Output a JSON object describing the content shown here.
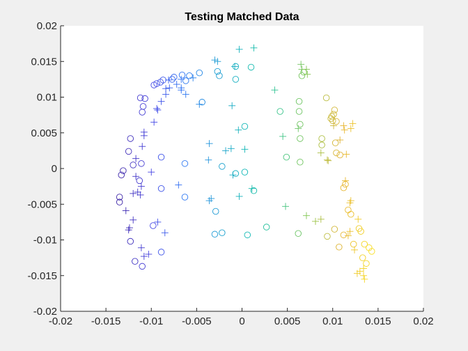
{
  "chart_data": {
    "type": "scatter",
    "title": "Testing Matched Data",
    "xlim": [
      -0.02,
      0.02
    ],
    "ylim": [
      -0.02,
      0.02
    ],
    "x_ticks": [
      "-0.02",
      "-0.015",
      "-0.01",
      "-0.005",
      "0",
      "0.005",
      "0.01",
      "0.015",
      "0.02"
    ],
    "y_ticks": [
      "-0.02",
      "-0.015",
      "-0.01",
      "-0.005",
      "0",
      "0.005",
      "0.01",
      "0.015",
      "0.02"
    ],
    "grid": false,
    "colormap": "parula",
    "colormap_stops": [
      "#3e26a8",
      "#4745e4",
      "#2d75f4",
      "#1e9ad6",
      "#0eb8b4",
      "#33c48e",
      "#8dc64c",
      "#e6b332",
      "#f9e21f"
    ],
    "series": [
      {
        "marker": "circle",
        "points": [
          [
            -0.0135,
            -0.004
          ],
          [
            -0.0135,
            -0.0047
          ],
          [
            -0.0133,
            -0.0009
          ],
          [
            -0.0131,
            -0.0003
          ],
          [
            -0.0125,
            0.0024
          ],
          [
            -0.0123,
            0.0042
          ],
          [
            -0.012,
            0.0005
          ],
          [
            -0.0123,
            -0.0102
          ],
          [
            -0.0118,
            -0.013
          ],
          [
            -0.011,
            -0.0137
          ],
          [
            -0.0112,
            0.0099
          ],
          [
            -0.0109,
            0.0087
          ],
          [
            -0.011,
            0.0079
          ],
          [
            -0.0107,
            0.0098
          ],
          [
            -0.0111,
            0.0007
          ],
          [
            -0.0113,
            -0.0017
          ],
          [
            -0.0097,
            0.0117
          ],
          [
            -0.0094,
            0.0119
          ],
          [
            -0.009,
            0.0121
          ],
          [
            -0.0087,
            0.0124
          ],
          [
            -0.0077,
            0.0125
          ],
          [
            -0.0075,
            0.0128
          ],
          [
            -0.0066,
            0.0131
          ],
          [
            -0.0058,
            0.013
          ],
          [
            -0.0062,
            0.0123
          ],
          [
            -0.0047,
            0.0134
          ],
          [
            -0.0044,
            0.0093
          ],
          [
            -0.0089,
            0.0016
          ],
          [
            -0.0089,
            -0.0028
          ],
          [
            -0.0098,
            -0.008
          ],
          [
            -0.0089,
            -0.0117
          ],
          [
            -0.0063,
            0.0007
          ],
          [
            -0.0063,
            -0.004
          ],
          [
            -0.0027,
            0.0136
          ],
          [
            -0.0025,
            0.013
          ],
          [
            -0.0007,
            0.0143
          ],
          [
            -0.0007,
            0.0125
          ],
          [
            -0.0022,
            0.0003
          ],
          [
            -0.0007,
            -0.0007
          ],
          [
            0.0003,
            -0.0005
          ],
          [
            0.0003,
            0.0059
          ],
          [
            0.0013,
            -0.0031
          ],
          [
            -0.0029,
            -0.006
          ],
          [
            -0.003,
            -0.0092
          ],
          [
            -0.0022,
            -0.009
          ],
          [
            0.0006,
            -0.0093
          ],
          [
            0.0027,
            -0.0082
          ],
          [
            0.001,
            0.0142
          ],
          [
            0.0042,
            0.008
          ],
          [
            0.0049,
            0.0016
          ],
          [
            0.0063,
            0.0094
          ],
          [
            0.0063,
            0.008
          ],
          [
            0.0064,
            0.0062
          ],
          [
            0.0064,
            0.0042
          ],
          [
            0.0064,
            0.0009
          ],
          [
            0.0062,
            -0.0091
          ],
          [
            0.0066,
            0.013
          ],
          [
            0.0068,
            0.0135
          ],
          [
            0.0088,
            0.0042
          ],
          [
            0.0088,
            0.0033
          ],
          [
            0.0093,
            0.0099
          ],
          [
            0.0094,
            -0.0095
          ],
          [
            0.0098,
            0.007
          ],
          [
            0.0099,
            0.0073
          ],
          [
            0.01,
            0.0067
          ],
          [
            0.0101,
            0.0076
          ],
          [
            0.0102,
            0.0082
          ],
          [
            0.0104,
            0.0066
          ],
          [
            0.0103,
            0.0036
          ],
          [
            0.0104,
            0.0022
          ],
          [
            0.0108,
            0.0019
          ],
          [
            0.0102,
            -0.0085
          ],
          [
            0.0107,
            -0.011
          ],
          [
            0.0112,
            -0.0093
          ],
          [
            0.0114,
            -0.0022
          ],
          [
            0.0112,
            -0.0027
          ],
          [
            0.0117,
            -0.0058
          ],
          [
            0.012,
            -0.0064
          ],
          [
            0.0123,
            -0.0106
          ],
          [
            0.0129,
            -0.0084
          ],
          [
            0.0131,
            -0.0088
          ],
          [
            0.0133,
            -0.0125
          ],
          [
            0.0135,
            -0.0106
          ],
          [
            0.0137,
            -0.0133
          ],
          [
            0.014,
            -0.0111
          ],
          [
            0.0143,
            -0.0116
          ]
        ]
      },
      {
        "marker": "plus",
        "points": [
          [
            -0.0128,
            -0.0059
          ],
          [
            -0.0125,
            -0.0086
          ],
          [
            -0.0124,
            -0.0083
          ],
          [
            -0.012,
            -0.0035
          ],
          [
            -0.012,
            -0.0072
          ],
          [
            -0.0115,
            -0.0033
          ],
          [
            -0.0117,
            -0.0011
          ],
          [
            -0.0117,
            0.0014
          ],
          [
            -0.0112,
            -0.0037
          ],
          [
            -0.0111,
            -0.0111
          ],
          [
            -0.0108,
            -0.0123
          ],
          [
            -0.0111,
            -0.0025
          ],
          [
            -0.0108,
            0.0051
          ],
          [
            -0.0108,
            0.0046
          ],
          [
            -0.011,
            0.0031
          ],
          [
            -0.0103,
            -0.012
          ],
          [
            -0.01,
            -0.0005
          ],
          [
            -0.0097,
            0.0065
          ],
          [
            -0.0094,
            0.0084
          ],
          [
            -0.0093,
            0.0082
          ],
          [
            -0.0093,
            -0.0075
          ],
          [
            -0.0089,
            0.0094
          ],
          [
            -0.0084,
            0.0104
          ],
          [
            -0.0084,
            0.0112
          ],
          [
            -0.0085,
            -0.009
          ],
          [
            -0.0081,
            0.0124
          ],
          [
            -0.008,
            0.0113
          ],
          [
            -0.0072,
            0.0118
          ],
          [
            -0.0067,
            0.011
          ],
          [
            -0.0067,
            0.0125
          ],
          [
            -0.0062,
            0.0104
          ],
          [
            -0.0054,
            0.0127
          ],
          [
            -0.0067,
            0.0113
          ],
          [
            -0.007,
            -0.0023
          ],
          [
            -0.0047,
            0.009
          ],
          [
            -0.0036,
            0.0035
          ],
          [
            -0.0037,
            0.0012
          ],
          [
            -0.0036,
            -0.0045
          ],
          [
            -0.0034,
            -0.0042
          ],
          [
            -0.0018,
            0.0025
          ],
          [
            -0.0011,
            0.0088
          ],
          [
            -0.0012,
            0.0028
          ],
          [
            -0.001,
            -0.0009
          ],
          [
            -0.0004,
            0.0054
          ],
          [
            -0.0003,
            -0.0039
          ],
          [
            -0.0003,
            0.0167
          ],
          [
            0.0013,
            0.0169
          ],
          [
            -0.0027,
            0.015
          ],
          [
            -0.003,
            0.0152
          ],
          [
            -0.0008,
            0.0143
          ],
          [
            0.0003,
            0.0027
          ],
          [
            0.0011,
            -0.0028
          ],
          [
            0.0036,
            0.011
          ],
          [
            0.0045,
            0.0045
          ],
          [
            0.0048,
            -0.0053
          ],
          [
            0.0062,
            0.0056
          ],
          [
            0.0065,
            0.0146
          ],
          [
            0.0066,
            0.0139
          ],
          [
            0.0072,
            0.0132
          ],
          [
            0.0071,
            0.0139
          ],
          [
            0.0071,
            -0.0066
          ],
          [
            0.0081,
            -0.0074
          ],
          [
            0.0087,
            -0.0071
          ],
          [
            0.0087,
            0.0022
          ],
          [
            0.0094,
            0.0012
          ],
          [
            0.0095,
            0.0011
          ],
          [
            0.0101,
            0.006
          ],
          [
            0.0108,
            0.004
          ],
          [
            0.0112,
            0.006
          ],
          [
            0.0113,
            0.0054
          ],
          [
            0.0114,
            -0.0017
          ],
          [
            0.0115,
            0.002
          ],
          [
            0.0117,
            -0.0094
          ],
          [
            0.0119,
            -0.0048
          ],
          [
            0.0119,
            -0.0088
          ],
          [
            0.012,
            0.0056
          ],
          [
            0.0122,
            0.0063
          ],
          [
            0.012,
            -0.0045
          ],
          [
            0.0124,
            -0.0114
          ],
          [
            0.0127,
            -0.0147
          ],
          [
            0.0128,
            -0.0071
          ],
          [
            0.013,
            -0.0144
          ],
          [
            0.0134,
            -0.014
          ],
          [
            0.0134,
            -0.015
          ],
          [
            0.0135,
            -0.0155
          ]
        ]
      }
    ]
  }
}
